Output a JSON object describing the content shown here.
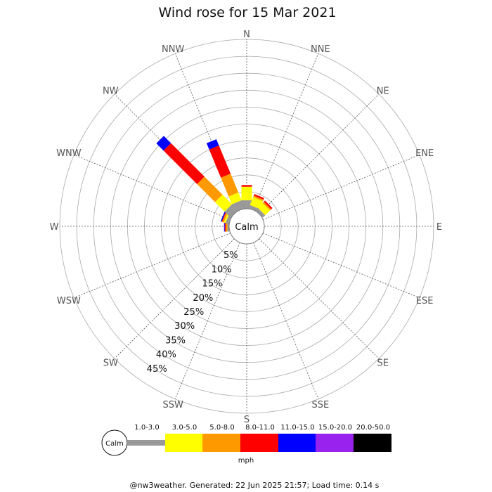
{
  "chart_data": {
    "type": "windrose",
    "title": "Wind rose for 15 Mar 2021",
    "directions": [
      "N",
      "NNE",
      "NE",
      "ENE",
      "E",
      "ESE",
      "SE",
      "SSE",
      "S",
      "SSW",
      "SW",
      "WSW",
      "W",
      "WNW",
      "NW",
      "NNW"
    ],
    "radial_labels": [
      "5%",
      "10%",
      "15%",
      "20%",
      "25%",
      "30%",
      "35%",
      "40%",
      "45%"
    ],
    "radial_max": 50,
    "calm_label": "Calm",
    "unit_label": "mph",
    "legend": [
      {
        "label": "1.0-3.0",
        "color": "#999999"
      },
      {
        "label": "3.0-5.0",
        "color": "#ffff00"
      },
      {
        "label": "5.0-8.0",
        "color": "#ff9900"
      },
      {
        "label": "8.0-11.0",
        "color": "#ff0000"
      },
      {
        "label": "11.0-15.0",
        "color": "#0000ff"
      },
      {
        "label": "15.0-20.0",
        "color": "#9922ee"
      },
      {
        "label": "20.0-50.0",
        "color": "#000000"
      }
    ],
    "series": [
      {
        "name": "1.0-3.0",
        "values": [
          2.5,
          1.0,
          1.0,
          0,
          0,
          0,
          0,
          0,
          0,
          0,
          0,
          0,
          0.5,
          1.0,
          2.5,
          2.5
        ]
      },
      {
        "name": "3.0-5.0",
        "values": [
          4.0,
          2.5,
          2.0,
          0,
          0,
          0,
          0,
          0,
          0,
          0,
          0,
          0,
          0,
          0.5,
          4.0,
          2.5
        ]
      },
      {
        "name": "5.0-8.0",
        "values": [
          0,
          0.5,
          0.5,
          0,
          0,
          0,
          0,
          0,
          0,
          0,
          0,
          0,
          0.5,
          0.5,
          7.5,
          6.0
        ]
      },
      {
        "name": "8.0-11.0",
        "values": [
          0.5,
          0.5,
          0.5,
          0,
          0,
          0,
          0,
          0,
          0,
          0,
          0,
          0,
          0.3,
          0.2,
          14.0,
          9.0
        ]
      },
      {
        "name": "11.0-15.0",
        "values": [
          0,
          0,
          0,
          0,
          0,
          0,
          0,
          0,
          0,
          0,
          0,
          0,
          0.2,
          0.3,
          3.0,
          2.0
        ]
      },
      {
        "name": "15.0-20.0",
        "values": [
          0,
          0,
          0,
          0,
          0,
          0,
          0,
          0,
          0,
          0,
          0,
          0,
          0,
          0,
          0,
          0
        ]
      },
      {
        "name": "20.0-50.0",
        "values": [
          0,
          0,
          0,
          0,
          0,
          0,
          0,
          0,
          0,
          0,
          0,
          0,
          0,
          0,
          0,
          0
        ]
      }
    ]
  },
  "footer": "@nw3weather. Generated: 22 Jun 2025 21:57; Load time: 0.14 s"
}
